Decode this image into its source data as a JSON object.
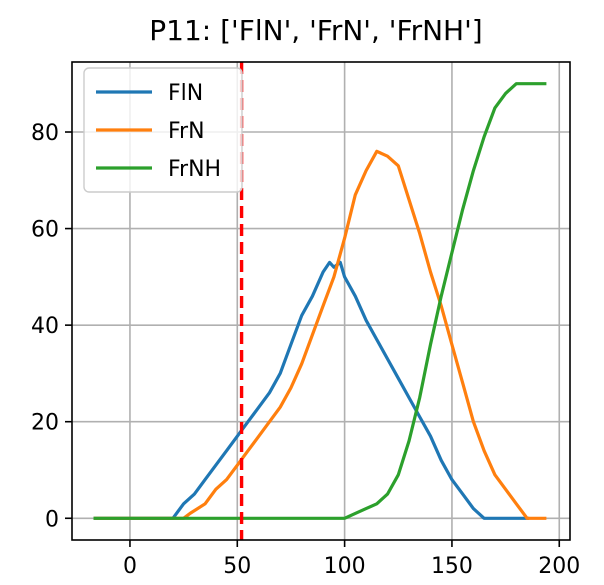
{
  "chart_data": {
    "type": "line",
    "title": "P11: ['FlN', 'FrN', 'FrNH']",
    "xlabel": "",
    "ylabel": "",
    "xlim": [
      -27,
      205
    ],
    "ylim": [
      -4.5,
      94.5
    ],
    "xticks": [
      0,
      50,
      100,
      150,
      200
    ],
    "yticks": [
      0,
      20,
      40,
      60,
      80
    ],
    "grid": true,
    "legend_position": "top-left",
    "vline": {
      "x": 52,
      "color": "#ff0000",
      "style": "dashed"
    },
    "series": [
      {
        "name": "FlN",
        "color": "#1f77b4",
        "x": [
          -17,
          20,
          25,
          30,
          35,
          40,
          45,
          50,
          55,
          60,
          65,
          70,
          75,
          80,
          85,
          90,
          93,
          95,
          98,
          100,
          105,
          110,
          115,
          120,
          125,
          130,
          135,
          140,
          145,
          150,
          155,
          160,
          165,
          170,
          175,
          180,
          186
        ],
        "y": [
          0,
          0,
          3,
          5,
          8,
          11,
          14,
          17,
          20,
          23,
          26,
          30,
          36,
          42,
          46,
          51,
          53,
          52,
          53,
          50,
          46,
          41,
          37,
          33,
          29,
          25,
          21,
          17,
          12,
          8,
          5,
          2,
          0,
          0,
          0,
          0,
          0
        ]
      },
      {
        "name": "FrN",
        "color": "#ff7f0e",
        "x": [
          -17,
          25,
          28,
          35,
          40,
          45,
          50,
          55,
          60,
          65,
          70,
          75,
          80,
          85,
          90,
          95,
          100,
          105,
          110,
          115,
          120,
          125,
          130,
          135,
          140,
          145,
          150,
          155,
          160,
          165,
          170,
          175,
          180,
          185,
          187,
          194
        ],
        "y": [
          0,
          0,
          1,
          3,
          6,
          8,
          11,
          14,
          17,
          20,
          23,
          27,
          32,
          38,
          44,
          50,
          58,
          67,
          72,
          76,
          75,
          73,
          66,
          59,
          51,
          44,
          36,
          28,
          20,
          14,
          9,
          6,
          3,
          0,
          0,
          0
        ]
      },
      {
        "name": "FrNH",
        "color": "#2ca02c",
        "x": [
          -17,
          100,
          105,
          110,
          115,
          120,
          125,
          130,
          135,
          140,
          145,
          150,
          155,
          160,
          165,
          170,
          175,
          180,
          185,
          190,
          194
        ],
        "y": [
          0,
          0,
          1,
          2,
          3,
          5,
          9,
          16,
          25,
          36,
          46,
          55,
          64,
          72,
          79,
          85,
          88,
          90,
          90,
          90,
          90
        ]
      }
    ]
  }
}
